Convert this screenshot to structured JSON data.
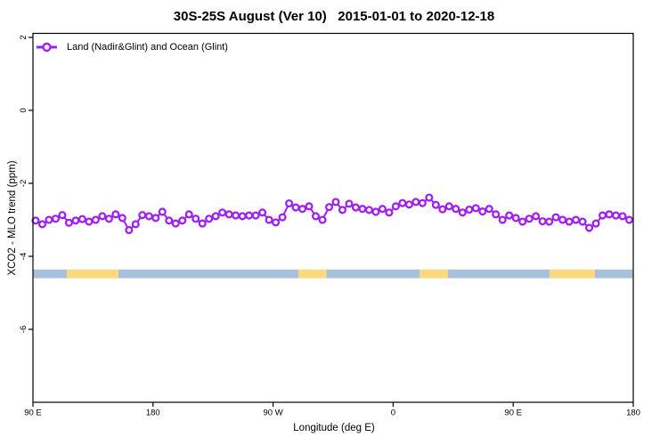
{
  "title": "30S-25S August (Ver 10)   2015-01-01 to 2020-12-18",
  "legend": {
    "label": "Land (Nadir&Glint) and Ocean (Glint)"
  },
  "colors": {
    "series_purple": "#a020f0",
    "marker_fill": "#ffffff",
    "ocean_band": "#a9c0dc",
    "land_band": "#fcd87f",
    "axis": "#000000"
  },
  "chart_data": {
    "type": "line",
    "title": "30S-25S August (Ver 10)   2015-01-01 to 2020-12-18",
    "xlabel": "Longitude (deg E)",
    "ylabel": "XCO2 - MLO trend (ppm)",
    "xlim": [
      90,
      540
    ],
    "ylim": [
      -8.0,
      2.11
    ],
    "grid": false,
    "legend_position": "top-left-inside",
    "x_ticks": {
      "values": [
        90,
        180,
        270,
        360,
        450,
        540
      ],
      "labels": [
        "90 E",
        "180",
        "90 W",
        "0",
        "90 E",
        "180"
      ]
    },
    "y_ticks": {
      "values": [
        2,
        0,
        -2,
        -4,
        -6
      ],
      "labels": [
        "2",
        "0",
        "-2",
        "-4",
        "-6"
      ]
    },
    "x_units_note": "axis position in deg E, wrapping past 360 (90E to 180 to 90W to 0 to 90E to 180)",
    "series": [
      {
        "name": "Land (Nadir&Glint) and Ocean (Glint)",
        "color": "#a020f0",
        "marker": "open-circle",
        "x": [
          92,
          97,
          102,
          107,
          112,
          117,
          122,
          127,
          132,
          137,
          142,
          147,
          152,
          157,
          162,
          167,
          172,
          177,
          182,
          187,
          192,
          197,
          202,
          207,
          212,
          217,
          222,
          227,
          232,
          237,
          242,
          247,
          252,
          257,
          262,
          267,
          272,
          277,
          282,
          287,
          292,
          297,
          302,
          307,
          312,
          317,
          322,
          327,
          332,
          337,
          342,
          347,
          352,
          357,
          362,
          367,
          372,
          377,
          382,
          387,
          392,
          397,
          402,
          407,
          412,
          417,
          422,
          427,
          432,
          437,
          442,
          447,
          452,
          457,
          462,
          467,
          472,
          477,
          482,
          487,
          492,
          497,
          502,
          507,
          512,
          517,
          522,
          527,
          532,
          537
        ],
        "y": [
          -3.02,
          -3.12,
          -3.0,
          -2.97,
          -2.87,
          -3.08,
          -3.02,
          -2.98,
          -3.05,
          -3.0,
          -2.9,
          -2.97,
          -2.85,
          -2.95,
          -3.28,
          -3.12,
          -2.87,
          -2.9,
          -2.95,
          -2.78,
          -3.02,
          -3.1,
          -3.02,
          -2.85,
          -2.97,
          -3.1,
          -2.97,
          -2.9,
          -2.8,
          -2.85,
          -2.88,
          -2.9,
          -2.88,
          -2.88,
          -2.8,
          -3.0,
          -3.07,
          -2.93,
          -2.55,
          -2.66,
          -2.7,
          -2.63,
          -2.9,
          -3.0,
          -2.65,
          -2.51,
          -2.73,
          -2.56,
          -2.66,
          -2.7,
          -2.73,
          -2.78,
          -2.7,
          -2.8,
          -2.63,
          -2.54,
          -2.58,
          -2.51,
          -2.54,
          -2.39,
          -2.59,
          -2.71,
          -2.63,
          -2.7,
          -2.8,
          -2.72,
          -2.68,
          -2.77,
          -2.7,
          -2.85,
          -3.0,
          -2.88,
          -2.95,
          -3.05,
          -2.97,
          -2.9,
          -3.04,
          -3.05,
          -2.93,
          -3.0,
          -3.05,
          -3.0,
          -3.05,
          -3.22,
          -3.1,
          -2.88,
          -2.85,
          -2.88,
          -2.9,
          -3.0
        ]
      }
    ],
    "surface_band": {
      "description": "land/ocean indicator strip",
      "y_top": -4.36,
      "y_bottom": -4.6,
      "colors": {
        "ocean": "#a9c0dc",
        "land": "#fcd87f"
      },
      "segments": [
        {
          "type": "ocean",
          "from": 90.0,
          "to": 115.4
        },
        {
          "type": "land",
          "from": 115.4,
          "to": 154.1
        },
        {
          "type": "ocean",
          "from": 154.1,
          "to": 289.0
        },
        {
          "type": "land",
          "from": 289.0,
          "to": 310.0
        },
        {
          "type": "ocean",
          "from": 310.0,
          "to": 380.0
        },
        {
          "type": "land",
          "from": 380.0,
          "to": 401.0
        },
        {
          "type": "ocean",
          "from": 401.0,
          "to": 477.2
        },
        {
          "type": "land",
          "from": 477.2,
          "to": 511.3
        },
        {
          "type": "ocean",
          "from": 511.3,
          "to": 539.5
        }
      ]
    }
  }
}
